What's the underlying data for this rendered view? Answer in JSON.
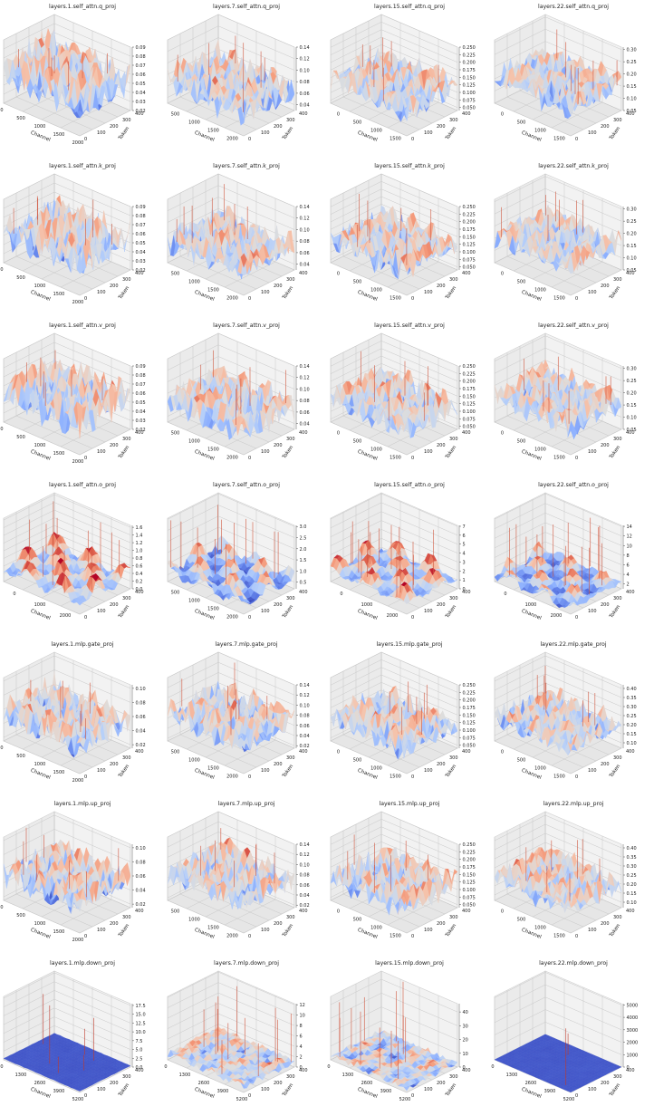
{
  "chart_data": [
    {
      "type": "surface3d",
      "title": "layers.1.self_attn.q_proj",
      "xlabel": "Channel",
      "ylabel": "Token",
      "xticks": [
        "0",
        "500",
        "1000",
        "1500",
        "2000"
      ],
      "yticks": [
        "0",
        "100",
        "200",
        "300",
        "400"
      ],
      "zticks": [
        "0.02",
        "0.03",
        "0.04",
        "0.05",
        "0.06",
        "0.07",
        "0.08",
        "0.09"
      ],
      "zlim": [
        0.02,
        0.09
      ],
      "surface": {
        "base": 0.055,
        "amp": 0.04,
        "spike": 0.012,
        "pattern": "uniform"
      }
    },
    {
      "type": "surface3d",
      "title": "layers.7.self_attn.q_proj",
      "xlabel": "Channel",
      "ylabel": "Token",
      "xticks": [
        "500",
        "1000",
        "1500",
        "2000"
      ],
      "yticks": [
        "0",
        "100",
        "200",
        "300",
        "400"
      ],
      "zticks": [
        "0.04",
        "0.06",
        "0.08",
        "0.10",
        "0.12",
        "0.14"
      ],
      "zlim": [
        0.03,
        0.14
      ],
      "surface": {
        "base": 0.07,
        "amp": 0.05,
        "spike": 0.012,
        "pattern": "uniform"
      }
    },
    {
      "type": "surface3d",
      "title": "layers.15.self_attn.q_proj",
      "xlabel": "Channel",
      "ylabel": "Token",
      "xticks": [
        "0",
        "500",
        "1000",
        "1500"
      ],
      "yticks": [
        "0",
        "100",
        "200",
        "300",
        "400"
      ],
      "zticks": [
        "0.050",
        "0.075",
        "0.100",
        "0.125",
        "0.150",
        "0.175",
        "0.200",
        "0.225",
        "0.250"
      ],
      "zlim": [
        0.04,
        0.25
      ],
      "surface": {
        "base": 0.12,
        "amp": 0.09,
        "spike": 0.012,
        "pattern": "uniform"
      }
    },
    {
      "type": "surface3d",
      "title": "layers.22.self_attn.q_proj",
      "xlabel": "Channel",
      "ylabel": "Token",
      "xticks": [
        "0",
        "500",
        "1000",
        "1500"
      ],
      "yticks": [
        "0",
        "100",
        "200",
        "300",
        "400"
      ],
      "zticks": [
        "0.05",
        "0.10",
        "0.15",
        "0.20",
        "0.25",
        "0.30"
      ],
      "zlim": [
        0.05,
        0.31
      ],
      "surface": {
        "base": 0.16,
        "amp": 0.1,
        "spike": 0.012,
        "pattern": "uniform"
      }
    },
    {
      "type": "surface3d",
      "title": "layers.1.self_attn.k_proj",
      "xlabel": "Channel",
      "ylabel": "Token",
      "xticks": [
        "0",
        "500",
        "1000",
        "1500",
        "2000"
      ],
      "yticks": [
        "0",
        "100",
        "200",
        "300",
        "400"
      ],
      "zticks": [
        "0.02",
        "0.03",
        "0.04",
        "0.05",
        "0.06",
        "0.07",
        "0.08",
        "0.09"
      ],
      "zlim": [
        0.02,
        0.09
      ],
      "surface": {
        "base": 0.055,
        "amp": 0.04,
        "spike": 0.012,
        "pattern": "uniform"
      }
    },
    {
      "type": "surface3d",
      "title": "layers.7.self_attn.k_proj",
      "xlabel": "Channel",
      "ylabel": "Token",
      "xticks": [
        "500",
        "1000",
        "1500",
        "2000"
      ],
      "yticks": [
        "0",
        "100",
        "200",
        "300",
        "400"
      ],
      "zticks": [
        "0.04",
        "0.06",
        "0.08",
        "0.10",
        "0.12",
        "0.14"
      ],
      "zlim": [
        0.03,
        0.14
      ],
      "surface": {
        "base": 0.07,
        "amp": 0.05,
        "spike": 0.012,
        "pattern": "uniform"
      }
    },
    {
      "type": "surface3d",
      "title": "layers.15.self_attn.k_proj",
      "xlabel": "Channel",
      "ylabel": "Token",
      "xticks": [
        "0",
        "500",
        "1000",
        "1500"
      ],
      "yticks": [
        "0",
        "100",
        "200",
        "300",
        "400"
      ],
      "zticks": [
        "0.050",
        "0.075",
        "0.100",
        "0.125",
        "0.150",
        "0.175",
        "0.200",
        "0.225",
        "0.250"
      ],
      "zlim": [
        0.04,
        0.25
      ],
      "surface": {
        "base": 0.12,
        "amp": 0.09,
        "spike": 0.012,
        "pattern": "uniform"
      }
    },
    {
      "type": "surface3d",
      "title": "layers.22.self_attn.k_proj",
      "xlabel": "Channel",
      "ylabel": "Token",
      "xticks": [
        "0",
        "500",
        "1000",
        "1500"
      ],
      "yticks": [
        "0",
        "100",
        "200",
        "300",
        "400"
      ],
      "zticks": [
        "0.05",
        "0.10",
        "0.15",
        "0.20",
        "0.25",
        "0.30"
      ],
      "zlim": [
        0.05,
        0.31
      ],
      "surface": {
        "base": 0.16,
        "amp": 0.1,
        "spike": 0.012,
        "pattern": "uniform"
      }
    },
    {
      "type": "surface3d",
      "title": "layers.1.self_attn.v_proj",
      "xlabel": "Channel",
      "ylabel": "Token",
      "xticks": [
        "0",
        "500",
        "1000",
        "1500",
        "2000"
      ],
      "yticks": [
        "0",
        "100",
        "200",
        "300",
        "400"
      ],
      "zticks": [
        "0.02",
        "0.03",
        "0.04",
        "0.05",
        "0.06",
        "0.07",
        "0.08",
        "0.09"
      ],
      "zlim": [
        0.02,
        0.09
      ],
      "surface": {
        "base": 0.055,
        "amp": 0.04,
        "spike": 0.012,
        "pattern": "uniform"
      }
    },
    {
      "type": "surface3d",
      "title": "layers.7.self_attn.v_proj",
      "xlabel": "Channel",
      "ylabel": "Token",
      "xticks": [
        "500",
        "1000",
        "1500",
        "2000"
      ],
      "yticks": [
        "0",
        "100",
        "200",
        "300",
        "400"
      ],
      "zticks": [
        "0.04",
        "0.06",
        "0.08",
        "0.10",
        "0.12",
        "0.14"
      ],
      "zlim": [
        0.03,
        0.14
      ],
      "surface": {
        "base": 0.07,
        "amp": 0.05,
        "spike": 0.012,
        "pattern": "uniform"
      }
    },
    {
      "type": "surface3d",
      "title": "layers.15.self_attn.v_proj",
      "xlabel": "Channel",
      "ylabel": "Token",
      "xticks": [
        "0",
        "500",
        "1000",
        "1500"
      ],
      "yticks": [
        "0",
        "100",
        "200",
        "300",
        "400"
      ],
      "zticks": [
        "0.050",
        "0.075",
        "0.100",
        "0.125",
        "0.150",
        "0.175",
        "0.200",
        "0.225",
        "0.250"
      ],
      "zlim": [
        0.04,
        0.25
      ],
      "surface": {
        "base": 0.12,
        "amp": 0.09,
        "spike": 0.012,
        "pattern": "uniform"
      }
    },
    {
      "type": "surface3d",
      "title": "layers.22.self_attn.v_proj",
      "xlabel": "Channel",
      "ylabel": "Token",
      "xticks": [
        "0",
        "500",
        "1000",
        "1500"
      ],
      "yticks": [
        "0",
        "100",
        "200",
        "300",
        "400"
      ],
      "zticks": [
        "0.05",
        "0.10",
        "0.15",
        "0.20",
        "0.25",
        "0.30"
      ],
      "zlim": [
        0.05,
        0.31
      ],
      "surface": {
        "base": 0.16,
        "amp": 0.1,
        "spike": 0.012,
        "pattern": "uniform"
      }
    },
    {
      "type": "surface3d",
      "title": "layers.1.self_attn.o_proj",
      "xlabel": "Channel",
      "ylabel": "Token",
      "xticks": [
        "0",
        "1000",
        "2000"
      ],
      "yticks": [
        "0",
        "100",
        "200",
        "300",
        "400"
      ],
      "zticks": [
        "0.0",
        "0.2",
        "0.4",
        "0.6",
        "0.8",
        "1.0",
        "1.2",
        "1.4",
        "1.6"
      ],
      "zlim": [
        0,
        1.65
      ],
      "surface": {
        "base": 0.35,
        "amp": 0.6,
        "spike": 0.02,
        "pattern": "blotchy"
      }
    },
    {
      "type": "surface3d",
      "title": "layers.7.self_attn.o_proj",
      "xlabel": "Channel",
      "ylabel": "Token",
      "xticks": [
        "500",
        "1000",
        "1500",
        "2000"
      ],
      "yticks": [
        "0",
        "100",
        "200",
        "300",
        "400"
      ],
      "zticks": [
        "0.5",
        "1.0",
        "1.5",
        "2.0",
        "2.5",
        "3.0"
      ],
      "zlim": [
        0.2,
        3.05
      ],
      "surface": {
        "base": 0.9,
        "amp": 1.0,
        "spike": 0.02,
        "pattern": "blotchy"
      }
    },
    {
      "type": "surface3d",
      "title": "layers.15.self_attn.o_proj",
      "xlabel": "Channel",
      "ylabel": "Token",
      "xticks": [
        "0",
        "1000",
        "2000"
      ],
      "yticks": [
        "0",
        "100",
        "200",
        "300",
        "400"
      ],
      "zticks": [
        "0",
        "1",
        "2",
        "3",
        "4",
        "5",
        "6",
        "7"
      ],
      "zlim": [
        0,
        7.1
      ],
      "surface": {
        "base": 1.4,
        "amp": 2.2,
        "spike": 0.025,
        "pattern": "blotchy"
      }
    },
    {
      "type": "surface3d",
      "title": "layers.22.self_attn.o_proj",
      "xlabel": "Channel",
      "ylabel": "Token",
      "xticks": [
        "0",
        "1000",
        "2000"
      ],
      "yticks": [
        "0",
        "100",
        "200",
        "300",
        "400"
      ],
      "zticks": [
        "2",
        "4",
        "6",
        "8",
        "10",
        "12",
        "14"
      ],
      "zlim": [
        1,
        14.2
      ],
      "surface": {
        "base": 3.0,
        "amp": 3.5,
        "spike": 0.025,
        "pattern": "blotchy"
      }
    },
    {
      "type": "surface3d",
      "title": "layers.1.mlp.gate_proj",
      "xlabel": "Channel",
      "ylabel": "Token",
      "xticks": [
        "0",
        "500",
        "1000",
        "1500",
        "2000"
      ],
      "yticks": [
        "0",
        "100",
        "200",
        "300",
        "400"
      ],
      "zticks": [
        "0.02",
        "0.04",
        "0.06",
        "0.08",
        "0.10"
      ],
      "zlim": [
        0.015,
        0.105
      ],
      "surface": {
        "base": 0.055,
        "amp": 0.04,
        "spike": 0.012,
        "pattern": "uniform"
      }
    },
    {
      "type": "surface3d",
      "title": "layers.7.mlp.gate_proj",
      "xlabel": "Channel",
      "ylabel": "Token",
      "xticks": [
        "500",
        "1000",
        "1500",
        "2000"
      ],
      "yticks": [
        "0",
        "100",
        "200",
        "300",
        "400"
      ],
      "zticks": [
        "0.02",
        "0.04",
        "0.06",
        "0.08",
        "0.10",
        "0.12",
        "0.14"
      ],
      "zlim": [
        0.015,
        0.14
      ],
      "surface": {
        "base": 0.07,
        "amp": 0.05,
        "spike": 0.012,
        "pattern": "uniform"
      }
    },
    {
      "type": "surface3d",
      "title": "layers.15.mlp.gate_proj",
      "xlabel": "Channel",
      "ylabel": "Token",
      "xticks": [
        "0",
        "500",
        "1000",
        "1500"
      ],
      "yticks": [
        "0",
        "100",
        "200",
        "300",
        "400"
      ],
      "zticks": [
        "0.050",
        "0.075",
        "0.100",
        "0.125",
        "0.150",
        "0.175",
        "0.200",
        "0.225",
        "0.250"
      ],
      "zlim": [
        0.04,
        0.25
      ],
      "surface": {
        "base": 0.12,
        "amp": 0.09,
        "spike": 0.012,
        "pattern": "uniform"
      }
    },
    {
      "type": "surface3d",
      "title": "layers.22.mlp.gate_proj",
      "xlabel": "Channel",
      "ylabel": "Token",
      "xticks": [
        "0",
        "500",
        "1000",
        "1500"
      ],
      "yticks": [
        "0",
        "100",
        "200",
        "300",
        "400"
      ],
      "zticks": [
        "0.10",
        "0.15",
        "0.20",
        "0.25",
        "0.30",
        "0.35",
        "0.40"
      ],
      "zlim": [
        0.07,
        0.42
      ],
      "surface": {
        "base": 0.2,
        "amp": 0.13,
        "spike": 0.012,
        "pattern": "uniform"
      }
    },
    {
      "type": "surface3d",
      "title": "layers.1.mlp.up_proj",
      "xlabel": "Channel",
      "ylabel": "Token",
      "xticks": [
        "0",
        "500",
        "1000",
        "1500",
        "2000"
      ],
      "yticks": [
        "0",
        "100",
        "200",
        "300",
        "400"
      ],
      "zticks": [
        "0.02",
        "0.04",
        "0.06",
        "0.08",
        "0.10"
      ],
      "zlim": [
        0.015,
        0.105
      ],
      "surface": {
        "base": 0.055,
        "amp": 0.04,
        "spike": 0.012,
        "pattern": "uniform"
      }
    },
    {
      "type": "surface3d",
      "title": "layers.7.mlp.up_proj",
      "xlabel": "Channel",
      "ylabel": "Token",
      "xticks": [
        "500",
        "1000",
        "1500",
        "2000"
      ],
      "yticks": [
        "0",
        "100",
        "200",
        "300",
        "400"
      ],
      "zticks": [
        "0.02",
        "0.04",
        "0.06",
        "0.08",
        "0.10",
        "0.12",
        "0.14"
      ],
      "zlim": [
        0.015,
        0.14
      ],
      "surface": {
        "base": 0.07,
        "amp": 0.05,
        "spike": 0.012,
        "pattern": "uniform"
      }
    },
    {
      "type": "surface3d",
      "title": "layers.15.mlp.up_proj",
      "xlabel": "Channel",
      "ylabel": "Token",
      "xticks": [
        "0",
        "500",
        "1000",
        "1500"
      ],
      "yticks": [
        "0",
        "100",
        "200",
        "300",
        "400"
      ],
      "zticks": [
        "0.050",
        "0.075",
        "0.100",
        "0.125",
        "0.150",
        "0.175",
        "0.200",
        "0.225",
        "0.250"
      ],
      "zlim": [
        0.04,
        0.25
      ],
      "surface": {
        "base": 0.12,
        "amp": 0.09,
        "spike": 0.012,
        "pattern": "uniform"
      }
    },
    {
      "type": "surface3d",
      "title": "layers.22.mlp.up_proj",
      "xlabel": "Channel",
      "ylabel": "Token",
      "xticks": [
        "0",
        "500",
        "1000",
        "1500"
      ],
      "yticks": [
        "0",
        "100",
        "200",
        "300",
        "400"
      ],
      "zticks": [
        "0.10",
        "0.15",
        "0.20",
        "0.25",
        "0.30",
        "0.35",
        "0.40"
      ],
      "zlim": [
        0.07,
        0.42
      ],
      "surface": {
        "base": 0.2,
        "amp": 0.13,
        "spike": 0.012,
        "pattern": "uniform"
      }
    },
    {
      "type": "surface3d",
      "title": "layers.1.mlp.down_proj",
      "xlabel": "Channel",
      "ylabel": "Token",
      "xticks": [
        "0",
        "1300",
        "2600",
        "3900",
        "5200"
      ],
      "yticks": [
        "0",
        "100",
        "200",
        "300",
        "400"
      ],
      "zticks": [
        "0.0",
        "2.5",
        "5.0",
        "7.5",
        "10.0",
        "12.5",
        "15.0",
        "17.5"
      ],
      "zlim": [
        0,
        18
      ],
      "surface": {
        "base": 0.3,
        "amp": 0.5,
        "spike": 0.01,
        "pattern": "flat"
      }
    },
    {
      "type": "surface3d",
      "title": "layers.7.mlp.down_proj",
      "xlabel": "Channel",
      "ylabel": "Token",
      "xticks": [
        "0",
        "1300",
        "2600",
        "3900",
        "5200"
      ],
      "yticks": [
        "0",
        "100",
        "200",
        "300",
        "400"
      ],
      "zticks": [
        "0",
        "2",
        "4",
        "6",
        "8",
        "10",
        "12"
      ],
      "zlim": [
        0,
        12.2
      ],
      "surface": {
        "base": 1.2,
        "amp": 1.3,
        "spike": 0.02,
        "pattern": "uniform"
      }
    },
    {
      "type": "surface3d",
      "title": "layers.15.mlp.down_proj",
      "xlabel": "Channel",
      "ylabel": "Token",
      "xticks": [
        "0",
        "1300",
        "2600",
        "3900",
        "5200"
      ],
      "yticks": [
        "0",
        "100",
        "200",
        "300",
        "400"
      ],
      "zticks": [
        "0",
        "10",
        "20",
        "30",
        "40"
      ],
      "zlim": [
        0,
        46
      ],
      "surface": {
        "base": 3.0,
        "amp": 3.5,
        "spike": 0.02,
        "pattern": "uniform"
      }
    },
    {
      "type": "surface3d",
      "title": "layers.22.mlp.down_proj",
      "xlabel": "Channel",
      "ylabel": "Token",
      "xticks": [
        "0",
        "1300",
        "2600",
        "3900",
        "5200"
      ],
      "yticks": [
        "0",
        "100",
        "200",
        "300",
        "400"
      ],
      "zticks": [
        "0",
        "1000",
        "2000",
        "3000",
        "4000",
        "5000"
      ],
      "zlim": [
        0,
        5100
      ],
      "surface": {
        "base": 10,
        "amp": 15,
        "spike": 0.002,
        "pattern": "flat"
      }
    }
  ]
}
